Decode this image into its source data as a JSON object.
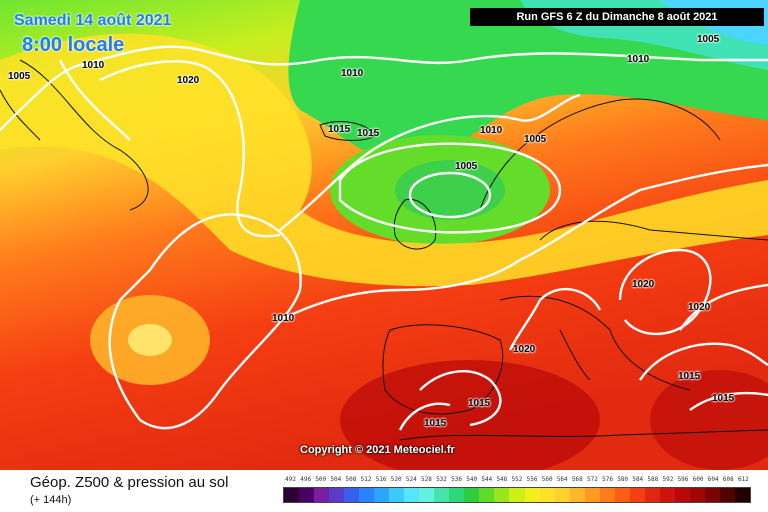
{
  "header": {
    "date": "Samedi 14 août 2021",
    "time": "8:00 locale",
    "run": "Run GFS 6 Z du Dimanche 8 août 2021"
  },
  "copyright": "Copyright © 2021 Meteociel.fr",
  "footer": {
    "title": "Géop. Z500 & pression au sol",
    "subtitle": "(+ 144h)"
  },
  "isobar_labels": [
    "1005",
    "1010",
    "1020",
    "1010",
    "1005",
    "1010",
    "1015",
    "1015",
    "1010",
    "1005",
    "1005",
    "1010",
    "1020",
    "1020",
    "1020",
    "1015",
    "1015",
    "1015",
    "1015",
    "1010"
  ],
  "legend": {
    "labels": [
      "492",
      "496",
      "500",
      "504",
      "508",
      "512",
      "516",
      "520",
      "524",
      "528",
      "532",
      "536",
      "540",
      "544",
      "548",
      "552",
      "556",
      "560",
      "564",
      "568",
      "572",
      "576",
      "580",
      "584",
      "588",
      "592",
      "596",
      "600",
      "604",
      "608",
      "612"
    ],
    "colors": [
      "#2a0033",
      "#4b0066",
      "#7a1fa0",
      "#5a3cc8",
      "#3a5ef0",
      "#2a82ff",
      "#2aa6ff",
      "#3ccaff",
      "#55e6ff",
      "#66f0e0",
      "#44e6a8",
      "#2ed87a",
      "#30cc40",
      "#5edc2a",
      "#9ae61e",
      "#cdf01a",
      "#f2f01a",
      "#ffe228",
      "#ffd02e",
      "#ffb82a",
      "#ff9a22",
      "#ff7c1c",
      "#ff5c16",
      "#f53e12",
      "#e5260e",
      "#d0140c",
      "#b80808",
      "#a00606",
      "#7a0404",
      "#500202",
      "#220000"
    ]
  },
  "colors": {
    "title_blue": "#1a7dff",
    "run_bg": "#000000",
    "isobar": "#ffffff"
  }
}
